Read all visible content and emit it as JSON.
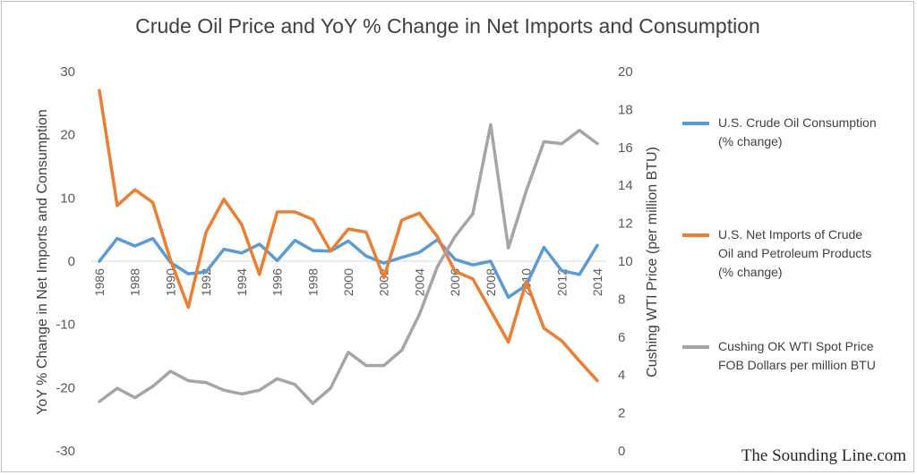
{
  "chart_data": {
    "type": "line",
    "title": "Crude Oil Price and YoY % Change in Net Imports and Consumption",
    "x": [
      1986,
      1987,
      1988,
      1989,
      1990,
      1991,
      1992,
      1993,
      1994,
      1995,
      1996,
      1997,
      1998,
      1999,
      2000,
      2001,
      2002,
      2003,
      2004,
      2005,
      2006,
      2007,
      2008,
      2009,
      2010,
      2011,
      2012,
      2013,
      2014
    ],
    "x_tick_labels": [
      "1986",
      "1988",
      "1990",
      "1992",
      "1994",
      "1996",
      "1998",
      "2000",
      "2002",
      "2004",
      "2006",
      "2008",
      "2010",
      "2012",
      "2014"
    ],
    "ylabel_left": "YoY % Change in Net Imports and Consumption",
    "ylabel_right": "Cushing WTI Price (per million BTU)",
    "ylim_left": [
      -30,
      30
    ],
    "ylim_right": [
      0,
      20
    ],
    "yticks_left": [
      "-30",
      "-20",
      "-10",
      "0",
      "10",
      "20",
      "30"
    ],
    "yticks_right": [
      "0",
      "2",
      "4",
      "6",
      "8",
      "10",
      "12",
      "14",
      "16",
      "18",
      "20"
    ],
    "grid": false,
    "legend_position": "right",
    "series": [
      {
        "name": "U.S. Crude Oil Consumption\n(% change)",
        "axis": "left",
        "color": "#5b9bd5",
        "values": [
          0.0,
          3.6,
          2.4,
          3.6,
          -0.2,
          -2.0,
          -1.7,
          1.9,
          1.3,
          2.7,
          0.1,
          3.3,
          1.7,
          1.6,
          3.2,
          0.8,
          -0.3,
          0.6,
          1.4,
          3.4,
          0.3,
          -0.6,
          0.0,
          -5.7,
          -3.8,
          2.2,
          -1.5,
          -2.1,
          2.5
        ]
      },
      {
        "name": "U.S. Net Imports of Crude\nOil and Petroleum Products\n(% change)",
        "axis": "left",
        "color": "#ed7d31",
        "values": [
          27.0,
          8.8,
          11.3,
          9.3,
          0.2,
          -7.3,
          4.6,
          9.8,
          5.8,
          -2.1,
          7.8,
          7.8,
          6.6,
          1.6,
          5.1,
          4.6,
          -2.6,
          6.5,
          7.6,
          3.9,
          -1.6,
          -2.8,
          -7.8,
          -12.8,
          -3.2,
          -10.6,
          -12.6,
          -15.8,
          -18.9
        ]
      },
      {
        "name": "Cushing OK WTI Spot Price\nFOB Dollars per million BTU",
        "axis": "right",
        "color": "#a5a5a5",
        "values": [
          2.6,
          3.3,
          2.8,
          3.4,
          4.2,
          3.7,
          3.6,
          3.2,
          3.0,
          3.2,
          3.8,
          3.5,
          2.5,
          3.3,
          5.2,
          4.5,
          4.5,
          5.3,
          7.2,
          9.7,
          11.3,
          12.5,
          17.2,
          10.7,
          13.7,
          16.3,
          16.2,
          16.9,
          16.2
        ]
      }
    ]
  },
  "watermark": "The Sounding Line.com"
}
